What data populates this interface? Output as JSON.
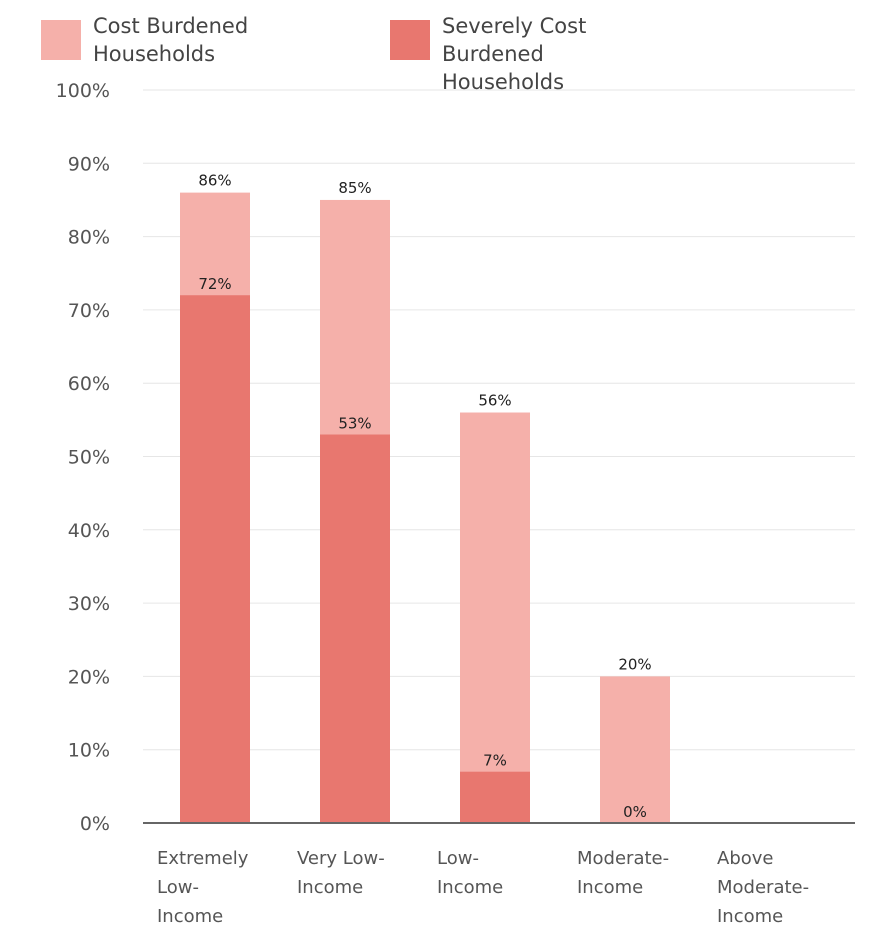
{
  "chart_data": {
    "type": "bar",
    "stacking": "overlay",
    "categories": [
      "Extremely Low-Income",
      "Very Low-Income",
      "Low-Income",
      "Moderate-Income",
      "Above Moderate-Income"
    ],
    "category_label_lines": [
      [
        "Extremely",
        "Low-",
        "Income"
      ],
      [
        "Very Low-",
        "Income"
      ],
      [
        "Low-",
        "Income"
      ],
      [
        "Moderate-",
        "Income"
      ],
      [
        "Above",
        "Moderate-",
        "Income"
      ]
    ],
    "series": [
      {
        "name": "Cost Burdened Households",
        "color": "#f5b0aa",
        "values": [
          86,
          85,
          56,
          20,
          null
        ],
        "labels": [
          "86%",
          "85%",
          "56%",
          "20%",
          ""
        ]
      },
      {
        "name": "Severely Cost Burdened Households",
        "color": "#e8776f",
        "values": [
          72,
          53,
          7,
          0,
          null
        ],
        "labels": [
          "72%",
          "53%",
          "7%",
          "0%",
          ""
        ]
      }
    ],
    "ylim": [
      0,
      100
    ],
    "yticks": [
      0,
      10,
      20,
      30,
      40,
      50,
      60,
      70,
      80,
      90,
      100
    ],
    "ytick_labels": [
      "0%",
      "10%",
      "20%",
      "30%",
      "40%",
      "50%",
      "60%",
      "70%",
      "80%",
      "90%",
      "100%"
    ],
    "grid": true,
    "legend_position": "top-left",
    "title": "",
    "xlabel": "",
    "ylabel": ""
  }
}
